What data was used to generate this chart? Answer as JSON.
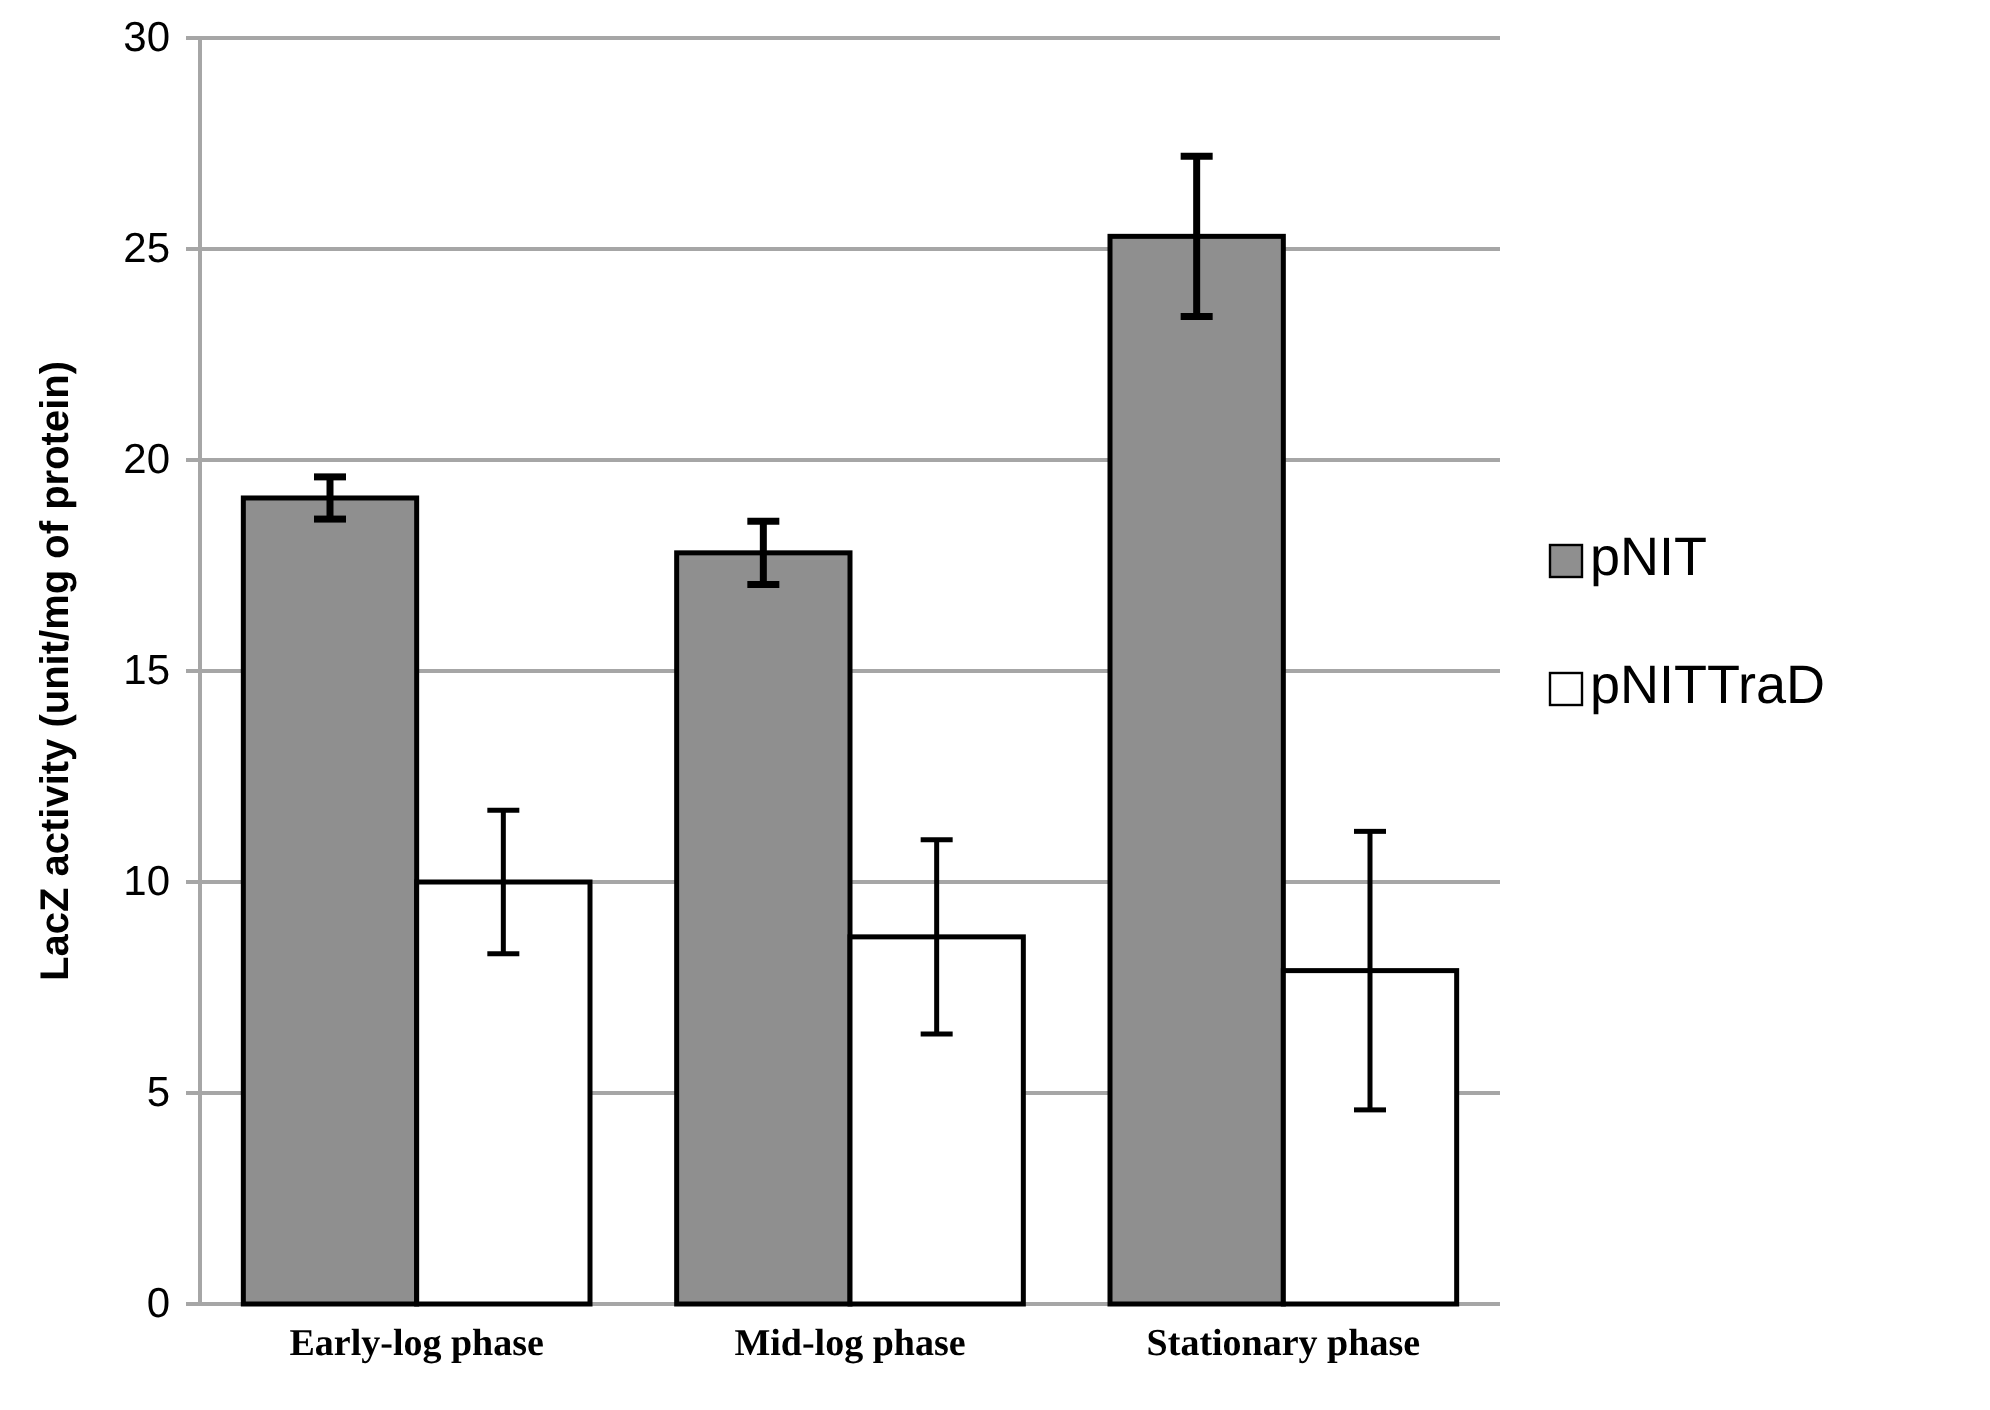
{
  "chart_data": {
    "type": "bar",
    "ylabel": "LacZ activity (unit/mg of protein)",
    "categories": [
      "Early-log phase",
      "Mid-log phase",
      "Stationary phase"
    ],
    "series": [
      {
        "name": "pNIT",
        "color": "#8f8f8f",
        "values": [
          19.1,
          17.8,
          25.3
        ],
        "errors": [
          0.5,
          0.75,
          1.9
        ]
      },
      {
        "name": "pNITTraD",
        "color": "#ffffff",
        "values": [
          10.0,
          8.7,
          7.9
        ],
        "errors": [
          1.7,
          2.3,
          3.3
        ]
      }
    ],
    "ylim": [
      0,
      30
    ],
    "yticks": [
      0,
      5,
      10,
      15,
      20,
      25,
      30
    ],
    "grid": "y",
    "legend": "right"
  }
}
